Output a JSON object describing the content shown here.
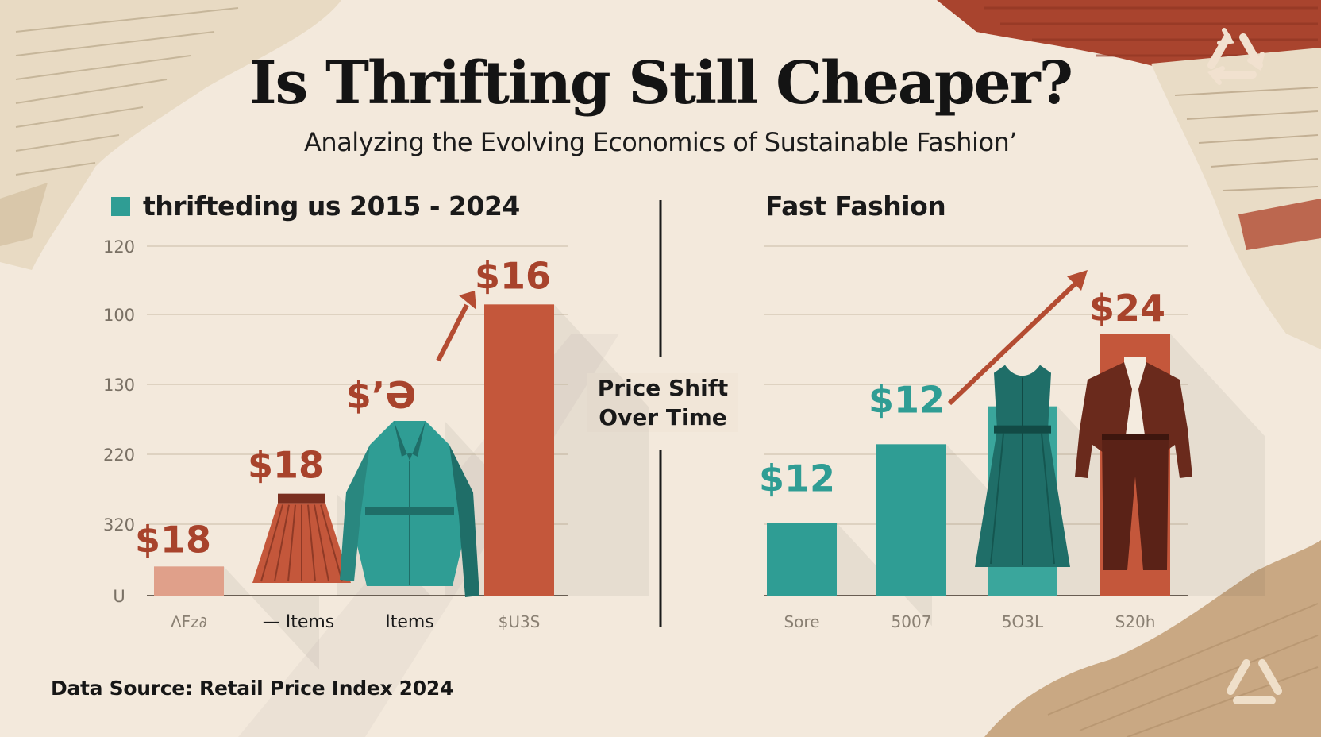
{
  "header": {
    "title": "Is Thrifting Still Cheaper?",
    "subtitle": "Analyzing the Evolving Economics of Sustainable Fashion’"
  },
  "center_label": "Price Shift\nOver Time",
  "source": "Data Source: Retail Price Index 2024",
  "colors": {
    "teal": "#2f9d94",
    "teal_dark": "#1f6e68",
    "rust": "#c4573b",
    "rust_label": "#a8432c",
    "peach": "#e0a08a",
    "ink": "#1a1a1a",
    "background": "#f3e9dc"
  },
  "icons": [
    "skirt-icon",
    "coat-icon",
    "dress-icon",
    "suit-icon",
    "recycle-icon",
    "trend-arrow-icon"
  ],
  "chart_data": [
    {
      "type": "bar",
      "legend": "thrifteding us 2015 - 2024",
      "y_tick_labels": [
        "120",
        "100",
        "130",
        "220",
        "320",
        "U"
      ],
      "x_tick_labels": [
        "ᐱFᴢ∂",
        "— Items",
        "Items",
        "$ᑌ3S"
      ],
      "data_labels": [
        "$18",
        "$18",
        "$’Ə",
        "$16"
      ],
      "values": [
        10,
        35,
        60,
        100
      ],
      "ylim": [
        0,
        120
      ],
      "grid": true,
      "series_colors": [
        "#e0a08a",
        "#c4573b",
        "#2f9d94",
        "#c4573b"
      ]
    },
    {
      "type": "bar",
      "title": "Fast Fashion",
      "x_tick_labels": [
        "Sore",
        "5007",
        "5O3L",
        "S20h"
      ],
      "data_labels": [
        "$12",
        "$12",
        "",
        "$24"
      ],
      "values": [
        25,
        52,
        65,
        90
      ],
      "ylim": [
        0,
        120
      ],
      "grid": true,
      "series_colors": [
        "#2f9d94",
        "#2f9d94",
        "#3aa69c",
        "#c4573b"
      ]
    }
  ]
}
